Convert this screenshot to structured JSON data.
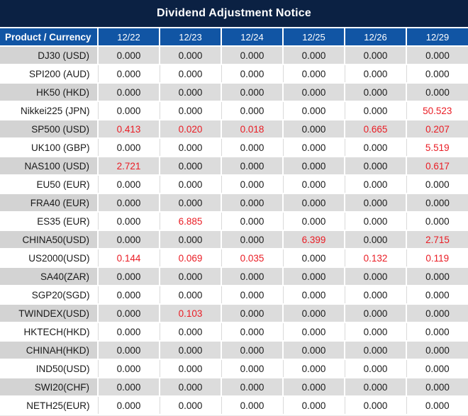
{
  "title": "Dividend Adjustment Notice",
  "colors": {
    "title_bar_bg": "#0b2143",
    "header_bg": "#1155a4",
    "stripe_row_bg": "#dcdcdc",
    "stripe_label_bg": "#d3d3d3",
    "gridline": "#d9d9d9",
    "value_text": "#1a1a1a",
    "highlight_red": "#ea1c24"
  },
  "table": {
    "header": {
      "product_label": "Product / Currency",
      "dates": [
        "12/22",
        "12/23",
        "12/24",
        "12/25",
        "12/26",
        "12/29"
      ]
    },
    "rows": [
      {
        "product": "DJ30 (USD)",
        "values": [
          "0.000",
          "0.000",
          "0.000",
          "0.000",
          "0.000",
          "0.000"
        ],
        "red": []
      },
      {
        "product": "SPI200 (AUD)",
        "values": [
          "0.000",
          "0.000",
          "0.000",
          "0.000",
          "0.000",
          "0.000"
        ],
        "red": []
      },
      {
        "product": "HK50 (HKD)",
        "values": [
          "0.000",
          "0.000",
          "0.000",
          "0.000",
          "0.000",
          "0.000"
        ],
        "red": []
      },
      {
        "product": "Nikkei225 (JPN)",
        "values": [
          "0.000",
          "0.000",
          "0.000",
          "0.000",
          "0.000",
          "50.523"
        ],
        "red": [
          5
        ]
      },
      {
        "product": "SP500 (USD)",
        "values": [
          "0.413",
          "0.020",
          "0.018",
          "0.000",
          "0.665",
          "0.207"
        ],
        "red": [
          0,
          1,
          2,
          4,
          5
        ]
      },
      {
        "product": "UK100 (GBP)",
        "values": [
          "0.000",
          "0.000",
          "0.000",
          "0.000",
          "0.000",
          "5.519"
        ],
        "red": [
          5
        ]
      },
      {
        "product": "NAS100 (USD)",
        "values": [
          "2.721",
          "0.000",
          "0.000",
          "0.000",
          "0.000",
          "0.617"
        ],
        "red": [
          0,
          5
        ]
      },
      {
        "product": "EU50 (EUR)",
        "values": [
          "0.000",
          "0.000",
          "0.000",
          "0.000",
          "0.000",
          "0.000"
        ],
        "red": []
      },
      {
        "product": "FRA40 (EUR)",
        "values": [
          "0.000",
          "0.000",
          "0.000",
          "0.000",
          "0.000",
          "0.000"
        ],
        "red": []
      },
      {
        "product": "ES35 (EUR)",
        "values": [
          "0.000",
          "6.885",
          "0.000",
          "0.000",
          "0.000",
          "0.000"
        ],
        "red": [
          1
        ]
      },
      {
        "product": "CHINA50(USD)",
        "values": [
          "0.000",
          "0.000",
          "0.000",
          "6.399",
          "0.000",
          "2.715"
        ],
        "red": [
          3,
          5
        ]
      },
      {
        "product": "US2000(USD)",
        "values": [
          "0.144",
          "0.069",
          "0.035",
          "0.000",
          "0.132",
          "0.119"
        ],
        "red": [
          0,
          1,
          2,
          4,
          5
        ]
      },
      {
        "product": "SA40(ZAR)",
        "values": [
          "0.000",
          "0.000",
          "0.000",
          "0.000",
          "0.000",
          "0.000"
        ],
        "red": []
      },
      {
        "product": "SGP20(SGD)",
        "values": [
          "0.000",
          "0.000",
          "0.000",
          "0.000",
          "0.000",
          "0.000"
        ],
        "red": []
      },
      {
        "product": "TWINDEX(USD)",
        "values": [
          "0.000",
          "0.103",
          "0.000",
          "0.000",
          "0.000",
          "0.000"
        ],
        "red": [
          1
        ]
      },
      {
        "product": "HKTECH(HKD)",
        "values": [
          "0.000",
          "0.000",
          "0.000",
          "0.000",
          "0.000",
          "0.000"
        ],
        "red": []
      },
      {
        "product": "CHINAH(HKD)",
        "values": [
          "0.000",
          "0.000",
          "0.000",
          "0.000",
          "0.000",
          "0.000"
        ],
        "red": []
      },
      {
        "product": "IND50(USD)",
        "values": [
          "0.000",
          "0.000",
          "0.000",
          "0.000",
          "0.000",
          "0.000"
        ],
        "red": []
      },
      {
        "product": "SWI20(CHF)",
        "values": [
          "0.000",
          "0.000",
          "0.000",
          "0.000",
          "0.000",
          "0.000"
        ],
        "red": []
      },
      {
        "product": "NETH25(EUR)",
        "values": [
          "0.000",
          "0.000",
          "0.000",
          "0.000",
          "0.000",
          "0.000"
        ],
        "red": []
      }
    ]
  }
}
